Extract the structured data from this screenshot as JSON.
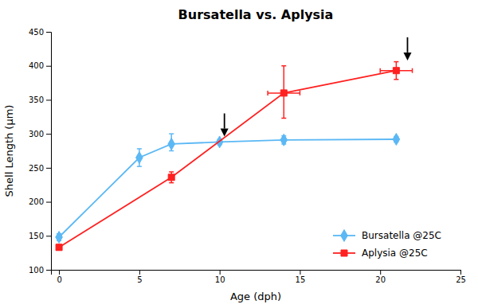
{
  "chart_data": {
    "type": "line",
    "title": "Bursatella vs. Aplysia",
    "x_label": "Age (dph)",
    "y_label": "Shell Length (μm)",
    "xlim": [
      -0.5,
      25
    ],
    "ylim": [
      100,
      450
    ],
    "xticks": [
      0,
      5,
      10,
      15,
      20,
      25
    ],
    "yticks": [
      100,
      150,
      200,
      250,
      300,
      350,
      400,
      450
    ],
    "grid": false,
    "legend": "lower right",
    "series": [
      {
        "name": "Bursatella @25C",
        "color": "#5BB8F5",
        "marker": "diamond",
        "line_style": "solid",
        "x": [
          0,
          5,
          7,
          10,
          14,
          21
        ],
        "values": [
          148,
          265,
          285,
          288,
          291,
          292
        ],
        "yerr_low": [
          5,
          13,
          10,
          4,
          6,
          4
        ],
        "yerr_high": [
          5,
          13,
          15,
          4,
          6,
          4
        ]
      },
      {
        "name": "Aplysia @25C",
        "color": "#FF2020",
        "marker": "square",
        "line_style": "solid",
        "x": [
          0,
          7,
          14,
          21
        ],
        "values": [
          133,
          236,
          360,
          393
        ],
        "yerr_low": [
          4,
          8,
          37,
          13
        ],
        "yerr_high": [
          4,
          8,
          40,
          13
        ],
        "xerr_low": [
          0,
          0,
          1,
          1
        ],
        "xerr_high": [
          0,
          0,
          1,
          1
        ]
      }
    ],
    "annotations": [
      {
        "x": 10.3,
        "y_tip": 296,
        "y_tail": 330
      },
      {
        "x": 21.7,
        "y_tip": 408,
        "y_tail": 442
      }
    ]
  }
}
